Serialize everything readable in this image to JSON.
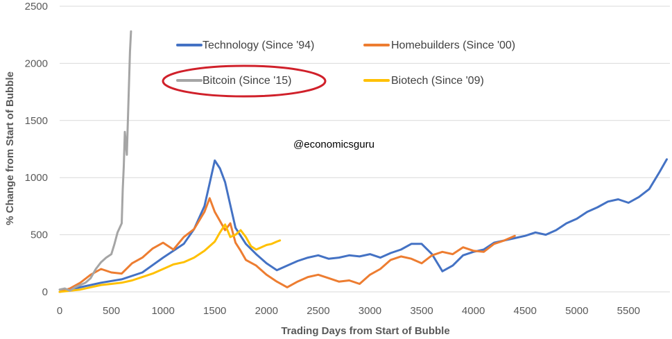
{
  "chart_data": {
    "type": "line",
    "title": "",
    "xlabel": "Trading Days from Start of Bubble",
    "ylabel": "% Change from Start of Bubble",
    "xlim": [
      0,
      5900
    ],
    "ylim": [
      0,
      2500
    ],
    "xticks": [
      0,
      500,
      1000,
      1500,
      2000,
      2500,
      3000,
      3500,
      4000,
      4500,
      5000,
      5500
    ],
    "xtick_labels": [
      "0",
      "500",
      "1000",
      "1500",
      "2000",
      "2500",
      "3000",
      "3500",
      "4000",
      "4500",
      "5000",
      "5500"
    ],
    "yticks": [
      0,
      500,
      1000,
      1500,
      2000,
      2500
    ],
    "ytick_labels": [
      "0",
      "500",
      "1000",
      "1500",
      "2000",
      "2500"
    ],
    "grid": "horizontal",
    "legend_placement": "top",
    "annotation": "@economicsguru",
    "highlighted_series": "Bitcoin (Since '15)",
    "series": [
      {
        "name": "Technology (Since '94)",
        "color": "#4472C4",
        "x": [
          0,
          200,
          400,
          600,
          800,
          1000,
          1200,
          1300,
          1400,
          1450,
          1500,
          1550,
          1600,
          1650,
          1700,
          1800,
          1900,
          2000,
          2100,
          2200,
          2300,
          2400,
          2500,
          2600,
          2700,
          2800,
          2900,
          3000,
          3100,
          3200,
          3300,
          3400,
          3500,
          3600,
          3700,
          3800,
          3900,
          4000,
          4100,
          4200,
          4300,
          4400,
          4500,
          4600,
          4700,
          4800,
          4900,
          5000,
          5100,
          5200,
          5300,
          5400,
          5500,
          5600,
          5700,
          5800,
          5870
        ],
        "y": [
          0,
          40,
          80,
          110,
          170,
          300,
          420,
          550,
          750,
          950,
          1150,
          1080,
          960,
          760,
          560,
          420,
          330,
          250,
          190,
          230,
          270,
          300,
          320,
          290,
          300,
          320,
          310,
          330,
          300,
          340,
          370,
          420,
          420,
          330,
          180,
          230,
          320,
          350,
          370,
          430,
          450,
          470,
          490,
          520,
          500,
          540,
          600,
          640,
          700,
          740,
          790,
          810,
          780,
          830,
          900,
          1050,
          1160
        ]
      },
      {
        "name": "Homebuilders (Since '00)",
        "color": "#ED7D31",
        "x": [
          0,
          100,
          200,
          300,
          400,
          500,
          600,
          700,
          800,
          900,
          1000,
          1100,
          1200,
          1300,
          1400,
          1450,
          1500,
          1550,
          1600,
          1650,
          1700,
          1750,
          1800,
          1900,
          2000,
          2100,
          2200,
          2300,
          2400,
          2500,
          2600,
          2700,
          2800,
          2900,
          3000,
          3100,
          3200,
          3300,
          3400,
          3500,
          3600,
          3700,
          3800,
          3900,
          4000,
          4100,
          4200,
          4300,
          4400
        ],
        "y": [
          0,
          30,
          80,
          150,
          200,
          170,
          160,
          250,
          300,
          380,
          430,
          370,
          480,
          550,
          700,
          820,
          700,
          620,
          540,
          600,
          430,
          360,
          280,
          230,
          150,
          90,
          40,
          90,
          130,
          150,
          120,
          90,
          100,
          70,
          150,
          200,
          280,
          310,
          290,
          250,
          320,
          350,
          330,
          390,
          360,
          350,
          420,
          450,
          490
        ]
      },
      {
        "name": "Bitcoin (Since '15)",
        "color": "#A5A5A5",
        "x": [
          0,
          50,
          100,
          150,
          200,
          250,
          300,
          350,
          400,
          450,
          500,
          530,
          560,
          580,
          600,
          610,
          620,
          630,
          640,
          650,
          660,
          670,
          680,
          690
        ],
        "y": [
          20,
          30,
          10,
          40,
          60,
          80,
          120,
          200,
          260,
          300,
          330,
          420,
          520,
          560,
          600,
          900,
          1100,
          1400,
          1300,
          1200,
          1500,
          1800,
          2100,
          2280
        ]
      },
      {
        "name": "Biotech (Since '09)",
        "color": "#FFC000",
        "x": [
          0,
          100,
          200,
          300,
          400,
          500,
          600,
          700,
          800,
          900,
          1000,
          1100,
          1200,
          1300,
          1400,
          1500,
          1550,
          1600,
          1650,
          1700,
          1750,
          1800,
          1850,
          1900,
          1950,
          2000,
          2050,
          2100,
          2130
        ],
        "y": [
          0,
          10,
          20,
          40,
          60,
          70,
          80,
          100,
          130,
          160,
          200,
          240,
          260,
          300,
          360,
          440,
          520,
          590,
          480,
          500,
          540,
          480,
          400,
          370,
          390,
          410,
          420,
          440,
          450
        ]
      }
    ]
  }
}
